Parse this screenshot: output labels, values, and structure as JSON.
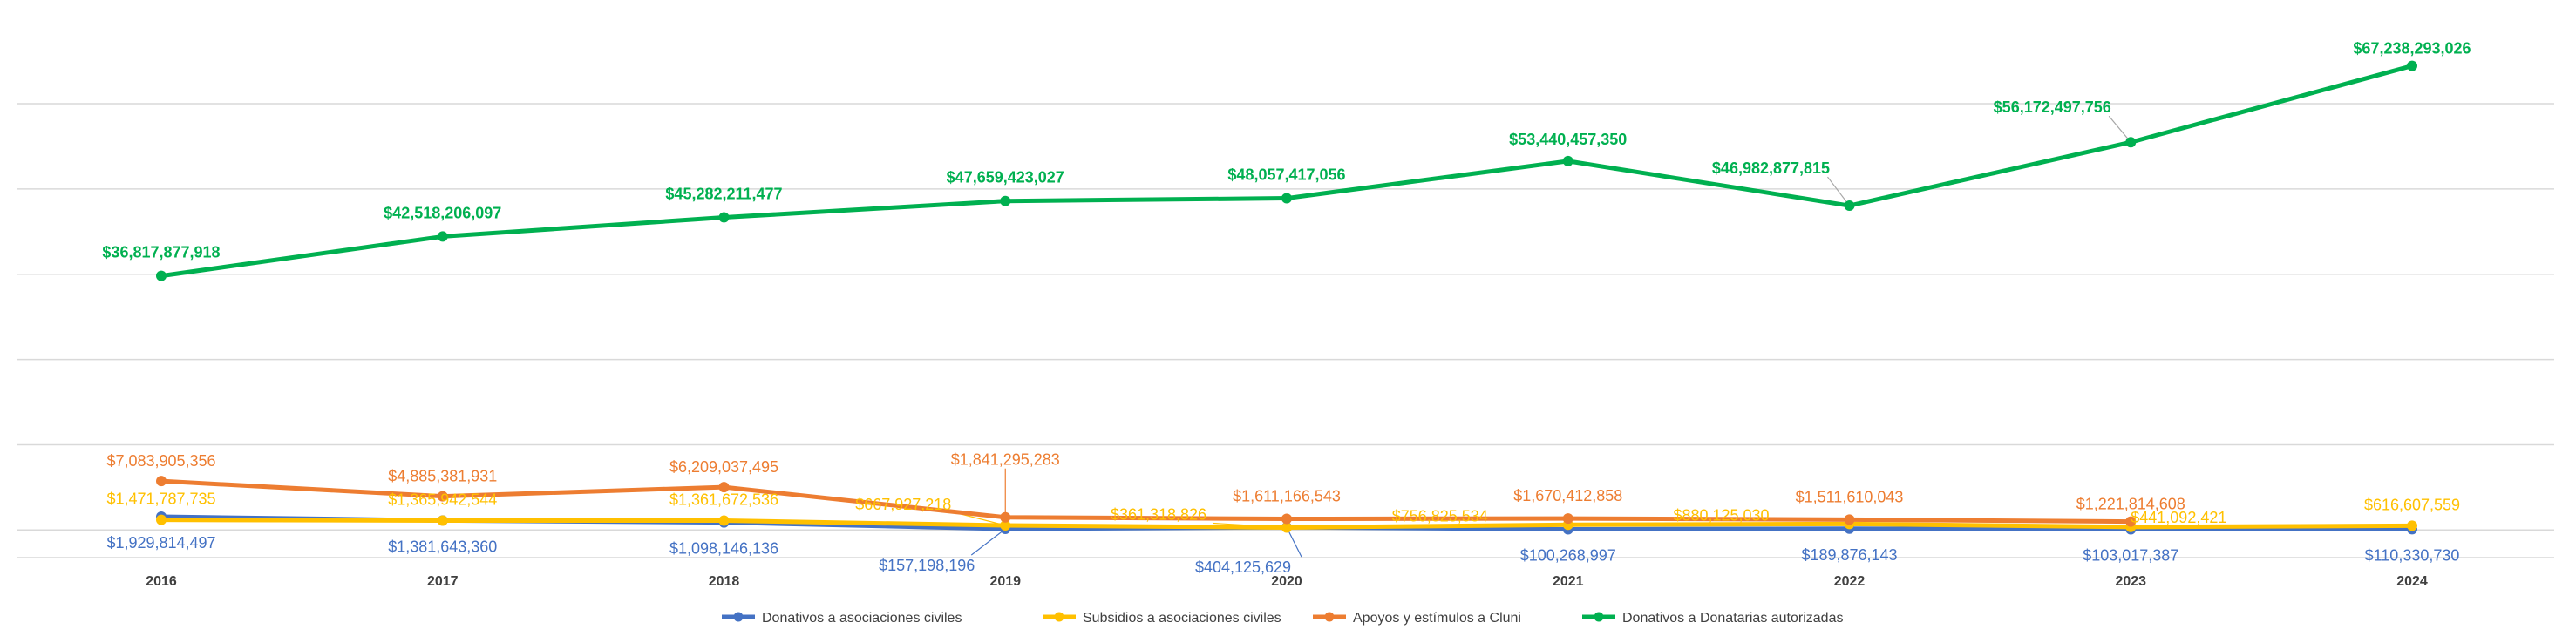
{
  "chart_data": {
    "type": "line",
    "title": "",
    "xlabel": "",
    "ylabel": "",
    "categories": [
      "2016",
      "2017",
      "2018",
      "2019",
      "2020",
      "2021",
      "2022",
      "2023",
      "2024"
    ],
    "ylim": [
      -4000000000,
      74000000000
    ],
    "grid": true,
    "legend_position": "bottom",
    "series": [
      {
        "key": "donativos_ac",
        "name": "Donativos a asociaciones civiles",
        "color": "#4472C4",
        "values": [
          1929814497,
          1381643360,
          1098146136,
          157198196,
          404125629,
          100268997,
          189876143,
          103017387,
          110330730
        ],
        "labels": [
          "$1,929,814,497",
          "$1,381,643,360",
          "$1,098,146,136",
          "$157,198,196",
          "$404,125,629",
          "$100,268,997",
          "$189,876,143",
          "$103,017,387",
          "$110,330,730"
        ]
      },
      {
        "key": "subsidios_ac",
        "name": "Subsidios a asociaciones civiles",
        "color": "#FFC000",
        "values": [
          1471787735,
          1365942544,
          1361672536,
          667927218,
          361318826,
          756825534,
          880125030,
          441092421,
          616607559
        ],
        "labels": [
          "$1,471,787,735",
          "$1,365,942,544",
          "$1,361,672,536",
          "$667,927,218",
          "$361,318,826",
          "$756,825,534",
          "$880,125,030",
          "$441,092,421",
          "$616,607,559"
        ]
      },
      {
        "key": "apoyos_cluni",
        "name": "Apoyos y estímulos a Cluni",
        "color": "#ED7D31",
        "values": [
          7083905356,
          4885381931,
          6209037495,
          1841295283,
          1611166543,
          1670412858,
          1511610043,
          1221814608,
          null
        ],
        "labels": [
          "$7,083,905,356",
          "$4,885,381,931",
          "$6,209,037,495",
          "$1,841,295,283",
          "$1,611,166,543",
          "$1,670,412,858",
          "$1,511,610,043",
          "$1,221,814,608",
          null
        ]
      },
      {
        "key": "donatarias",
        "name": "Donativos a Donatarias autorizadas",
        "color": "#00B050",
        "values": [
          36817877918,
          42518206097,
          45282211477,
          47659423027,
          48057417056,
          53440457350,
          46982877815,
          56172497756,
          67238293026
        ],
        "labels": [
          "$36,817,877,918",
          "$42,518,206,097",
          "$45,282,211,477",
          "$47,659,423,027",
          "$48,057,417,056",
          "$53,440,457,350",
          "$46,982,877,815",
          "$56,172,497,756",
          "$67,238,293,026"
        ]
      }
    ]
  }
}
